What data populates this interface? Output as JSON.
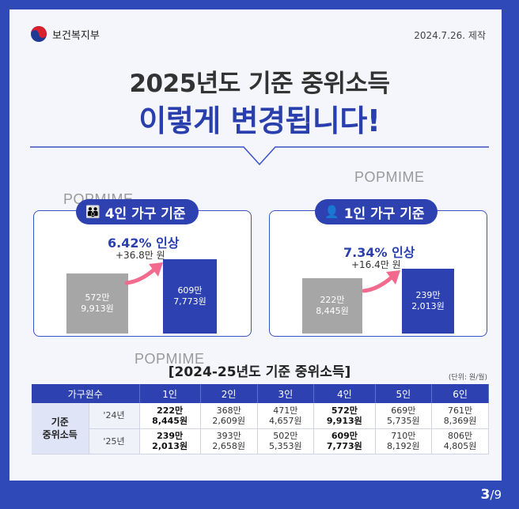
{
  "header": {
    "org_name": "보건복지부",
    "made_date": "2024.7.26. 제작"
  },
  "title": {
    "line1": "2025년도 기준 중위소득",
    "line2": "이렇게 변경됩니다!"
  },
  "watermarks": [
    "POPMIME",
    "POPMIME",
    "POPMIME"
  ],
  "household4": {
    "label": "4인 가구 기준",
    "increase_pct": "6.42% 인상",
    "increase_amt": "+36.8만 원",
    "old_line1": "572만",
    "old_line2": "9,913원",
    "new_line1": "609만",
    "new_line2": "7,773원"
  },
  "household1": {
    "label": "1인 가구 기준",
    "increase_pct": "7.34% 인상",
    "increase_amt": "+16.4만 원",
    "old_line1": "222만",
    "old_line2": "8,445원",
    "new_line1": "239만",
    "new_line2": "2,013원"
  },
  "table": {
    "title": "[2024-25년도 기준 중위소득]",
    "unit": "(단위: 원/월)",
    "header_first": "가구원수",
    "columns": [
      "1인",
      "2인",
      "3인",
      "4인",
      "5인",
      "6인"
    ],
    "row_label_line1": "기준",
    "row_label_line2": "중위소득",
    "rows": [
      {
        "year": "'24년",
        "cells": [
          [
            "222만",
            "8,445원"
          ],
          [
            "368만",
            "2,609원"
          ],
          [
            "471만",
            "4,657원"
          ],
          [
            "572만",
            "9,913원"
          ],
          [
            "669만",
            "5,735원"
          ],
          [
            "761만",
            "8,369원"
          ]
        ]
      },
      {
        "year": "'25년",
        "cells": [
          [
            "239만",
            "2,013원"
          ],
          [
            "393만",
            "2,658원"
          ],
          [
            "502만",
            "5,353원"
          ],
          [
            "609만",
            "7,773원"
          ],
          [
            "710만",
            "8,192원"
          ],
          [
            "806만",
            "4,805원"
          ]
        ]
      }
    ]
  },
  "pagination": {
    "current": "3",
    "total": "/9"
  },
  "colors": {
    "brand_blue": "#2d42b0",
    "bar_gray": "#a6a6a6",
    "arrow_pink": "#f26a8d"
  }
}
